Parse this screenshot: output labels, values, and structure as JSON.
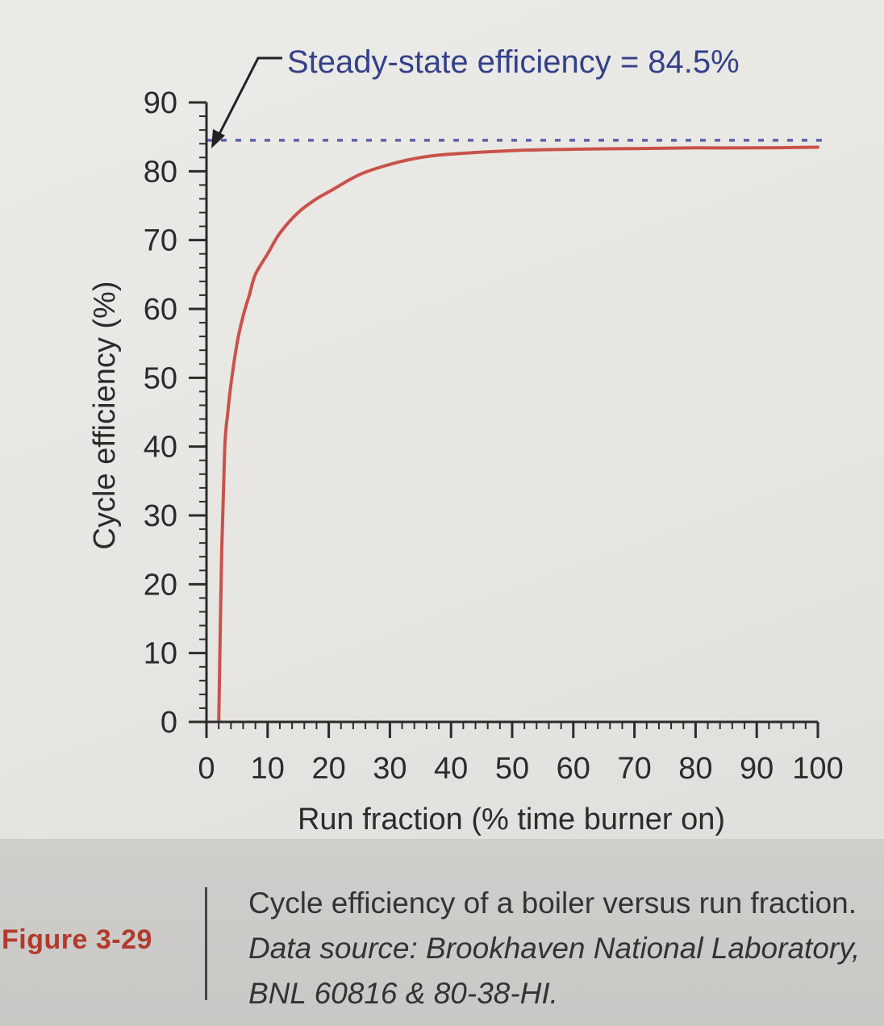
{
  "chart_data": {
    "type": "line",
    "title": "",
    "xlabel": "Run fraction (% time burner on)",
    "ylabel": "Cycle efficiency (%)",
    "xlim": [
      0,
      100
    ],
    "ylim": [
      0,
      90
    ],
    "x_ticks": [
      0,
      10,
      20,
      30,
      40,
      50,
      60,
      70,
      80,
      90,
      100
    ],
    "y_ticks": [
      0,
      10,
      20,
      30,
      40,
      50,
      60,
      70,
      80,
      90
    ],
    "grid": false,
    "series": [
      {
        "color": "#c9524a",
        "x": [
          2,
          2.5,
          3,
          3.5,
          4,
          5,
          6,
          7,
          8,
          10,
          12,
          15,
          18,
          20,
          25,
          30,
          35,
          40,
          50,
          60,
          70,
          80,
          90,
          100
        ],
        "y": [
          0,
          25,
          40,
          45,
          49,
          55,
          59,
          62,
          65,
          68,
          71,
          74,
          76,
          77,
          79.5,
          81,
          82,
          82.5,
          83,
          83.2,
          83.3,
          83.4,
          83.4,
          83.5
        ]
      }
    ],
    "reference_line": {
      "y": 84.5,
      "style": "dashed",
      "color": "#5a62a8",
      "label": "Steady-state efficiency = 84.5%"
    }
  },
  "caption": {
    "figure_number": "Figure 3-29",
    "text": "Cycle efficiency of a boiler versus run fraction.",
    "source": "Data source: Brookhaven National Laboratory, BNL 60816 & 80-38-HI."
  }
}
